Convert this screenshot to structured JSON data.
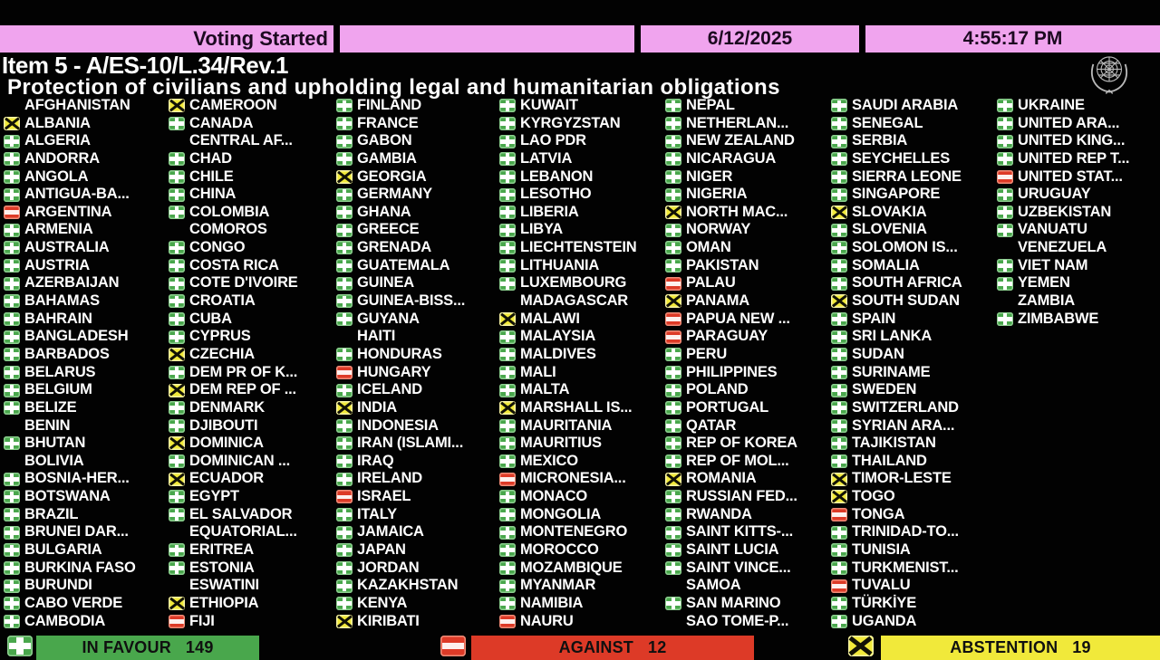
{
  "header": {
    "status_label": "Voting Started",
    "date": "6/12/2025",
    "time": "4:55:17 PM"
  },
  "title": {
    "item": "Item 5 - A/ES-10/L.34/Rev.1",
    "resolution": "Protection of civilians and upholding legal and humanitarian obligations"
  },
  "colors": {
    "topbar_pink": "#f0a4ee",
    "favour_green": "#49a74c",
    "against_red": "#dd3a27",
    "abstain_yellow": "#f1e93a",
    "text_white": "#ffffff",
    "background": "#020202"
  },
  "vote_codes": {
    "f": "in-favour",
    "n": "against",
    "a": "abstention",
    "x": "not-voting"
  },
  "columns": [
    [
      {
        "name": "AFGHANISTAN",
        "vote": "x"
      },
      {
        "name": "ALBANIA",
        "vote": "a"
      },
      {
        "name": "ALGERIA",
        "vote": "f"
      },
      {
        "name": "ANDORRA",
        "vote": "f"
      },
      {
        "name": "ANGOLA",
        "vote": "f"
      },
      {
        "name": "ANTIGUA-BA...",
        "vote": "f"
      },
      {
        "name": "ARGENTINA",
        "vote": "n"
      },
      {
        "name": "ARMENIA",
        "vote": "f"
      },
      {
        "name": "AUSTRALIA",
        "vote": "f"
      },
      {
        "name": "AUSTRIA",
        "vote": "f"
      },
      {
        "name": "AZERBAIJAN",
        "vote": "f"
      },
      {
        "name": "BAHAMAS",
        "vote": "f"
      },
      {
        "name": "BAHRAIN",
        "vote": "f"
      },
      {
        "name": "BANGLADESH",
        "vote": "f"
      },
      {
        "name": "BARBADOS",
        "vote": "f"
      },
      {
        "name": "BELARUS",
        "vote": "f"
      },
      {
        "name": "BELGIUM",
        "vote": "f"
      },
      {
        "name": "BELIZE",
        "vote": "f"
      },
      {
        "name": "BENIN",
        "vote": "x"
      },
      {
        "name": "BHUTAN",
        "vote": "f"
      },
      {
        "name": "BOLIVIA",
        "vote": "x"
      },
      {
        "name": "BOSNIA-HER...",
        "vote": "f"
      },
      {
        "name": "BOTSWANA",
        "vote": "f"
      },
      {
        "name": "BRAZIL",
        "vote": "f"
      },
      {
        "name": "BRUNEI DAR...",
        "vote": "f"
      },
      {
        "name": "BULGARIA",
        "vote": "f"
      },
      {
        "name": "BURKINA FASO",
        "vote": "f"
      },
      {
        "name": "BURUNDI",
        "vote": "f"
      },
      {
        "name": "CABO VERDE",
        "vote": "f"
      },
      {
        "name": "CAMBODIA",
        "vote": "f"
      }
    ],
    [
      {
        "name": "CAMEROON",
        "vote": "a"
      },
      {
        "name": "CANADA",
        "vote": "f"
      },
      {
        "name": "CENTRAL AF...",
        "vote": "x"
      },
      {
        "name": "CHAD",
        "vote": "f"
      },
      {
        "name": "CHILE",
        "vote": "f"
      },
      {
        "name": "CHINA",
        "vote": "f"
      },
      {
        "name": "COLOMBIA",
        "vote": "f"
      },
      {
        "name": "COMOROS",
        "vote": "x"
      },
      {
        "name": "CONGO",
        "vote": "f"
      },
      {
        "name": "COSTA RICA",
        "vote": "f"
      },
      {
        "name": "COTE D'IVOIRE",
        "vote": "f"
      },
      {
        "name": "CROATIA",
        "vote": "f"
      },
      {
        "name": "CUBA",
        "vote": "f"
      },
      {
        "name": "CYPRUS",
        "vote": "f"
      },
      {
        "name": "CZECHIA",
        "vote": "a"
      },
      {
        "name": "DEM PR OF K...",
        "vote": "f"
      },
      {
        "name": "DEM REP OF ...",
        "vote": "a"
      },
      {
        "name": "DENMARK",
        "vote": "f"
      },
      {
        "name": "DJIBOUTI",
        "vote": "f"
      },
      {
        "name": "DOMINICA",
        "vote": "a"
      },
      {
        "name": "DOMINICAN ...",
        "vote": "f"
      },
      {
        "name": "ECUADOR",
        "vote": "a"
      },
      {
        "name": "EGYPT",
        "vote": "f"
      },
      {
        "name": "EL SALVADOR",
        "vote": "f"
      },
      {
        "name": "EQUATORIAL...",
        "vote": "x"
      },
      {
        "name": "ERITREA",
        "vote": "f"
      },
      {
        "name": "ESTONIA",
        "vote": "f"
      },
      {
        "name": "ESWATINI",
        "vote": "x"
      },
      {
        "name": "ETHIOPIA",
        "vote": "a"
      },
      {
        "name": "FIJI",
        "vote": "n"
      }
    ],
    [
      {
        "name": "FINLAND",
        "vote": "f"
      },
      {
        "name": "FRANCE",
        "vote": "f"
      },
      {
        "name": "GABON",
        "vote": "f"
      },
      {
        "name": "GAMBIA",
        "vote": "f"
      },
      {
        "name": "GEORGIA",
        "vote": "a"
      },
      {
        "name": "GERMANY",
        "vote": "f"
      },
      {
        "name": "GHANA",
        "vote": "f"
      },
      {
        "name": "GREECE",
        "vote": "f"
      },
      {
        "name": "GRENADA",
        "vote": "f"
      },
      {
        "name": "GUATEMALA",
        "vote": "f"
      },
      {
        "name": "GUINEA",
        "vote": "f"
      },
      {
        "name": "GUINEA-BISS...",
        "vote": "f"
      },
      {
        "name": "GUYANA",
        "vote": "f"
      },
      {
        "name": "HAITI",
        "vote": "x"
      },
      {
        "name": "HONDURAS",
        "vote": "f"
      },
      {
        "name": "HUNGARY",
        "vote": "n"
      },
      {
        "name": "ICELAND",
        "vote": "f"
      },
      {
        "name": "INDIA",
        "vote": "a"
      },
      {
        "name": "INDONESIA",
        "vote": "f"
      },
      {
        "name": "IRAN (ISLAMI...",
        "vote": "f"
      },
      {
        "name": "IRAQ",
        "vote": "f"
      },
      {
        "name": "IRELAND",
        "vote": "f"
      },
      {
        "name": "ISRAEL",
        "vote": "n"
      },
      {
        "name": "ITALY",
        "vote": "f"
      },
      {
        "name": "JAMAICA",
        "vote": "f"
      },
      {
        "name": "JAPAN",
        "vote": "f"
      },
      {
        "name": "JORDAN",
        "vote": "f"
      },
      {
        "name": "KAZAKHSTAN",
        "vote": "f"
      },
      {
        "name": "KENYA",
        "vote": "f"
      },
      {
        "name": "KIRIBATI",
        "vote": "a"
      }
    ],
    [
      {
        "name": "KUWAIT",
        "vote": "f"
      },
      {
        "name": "KYRGYZSTAN",
        "vote": "f"
      },
      {
        "name": "LAO PDR",
        "vote": "f"
      },
      {
        "name": "LATVIA",
        "vote": "f"
      },
      {
        "name": "LEBANON",
        "vote": "f"
      },
      {
        "name": "LESOTHO",
        "vote": "f"
      },
      {
        "name": "LIBERIA",
        "vote": "f"
      },
      {
        "name": "LIBYA",
        "vote": "f"
      },
      {
        "name": "LIECHTENSTEIN",
        "vote": "f"
      },
      {
        "name": "LITHUANIA",
        "vote": "f"
      },
      {
        "name": "LUXEMBOURG",
        "vote": "f"
      },
      {
        "name": "MADAGASCAR",
        "vote": "x"
      },
      {
        "name": "MALAWI",
        "vote": "a"
      },
      {
        "name": "MALAYSIA",
        "vote": "f"
      },
      {
        "name": "MALDIVES",
        "vote": "f"
      },
      {
        "name": "MALI",
        "vote": "f"
      },
      {
        "name": "MALTA",
        "vote": "f"
      },
      {
        "name": "MARSHALL IS...",
        "vote": "a"
      },
      {
        "name": "MAURITANIA",
        "vote": "f"
      },
      {
        "name": "MAURITIUS",
        "vote": "f"
      },
      {
        "name": "MEXICO",
        "vote": "f"
      },
      {
        "name": "MICRONESIA...",
        "vote": "n"
      },
      {
        "name": "MONACO",
        "vote": "f"
      },
      {
        "name": "MONGOLIA",
        "vote": "f"
      },
      {
        "name": "MONTENEGRO",
        "vote": "f"
      },
      {
        "name": "MOROCCO",
        "vote": "f"
      },
      {
        "name": "MOZAMBIQUE",
        "vote": "f"
      },
      {
        "name": "MYANMAR",
        "vote": "f"
      },
      {
        "name": "NAMIBIA",
        "vote": "f"
      },
      {
        "name": "NAURU",
        "vote": "n"
      }
    ],
    [
      {
        "name": "NEPAL",
        "vote": "f"
      },
      {
        "name": "NETHERLAN...",
        "vote": "f"
      },
      {
        "name": "NEW ZEALAND",
        "vote": "f"
      },
      {
        "name": "NICARAGUA",
        "vote": "f"
      },
      {
        "name": "NIGER",
        "vote": "f"
      },
      {
        "name": "NIGERIA",
        "vote": "f"
      },
      {
        "name": "NORTH MAC...",
        "vote": "a"
      },
      {
        "name": "NORWAY",
        "vote": "f"
      },
      {
        "name": "OMAN",
        "vote": "f"
      },
      {
        "name": "PAKISTAN",
        "vote": "f"
      },
      {
        "name": "PALAU",
        "vote": "n"
      },
      {
        "name": "PANAMA",
        "vote": "a"
      },
      {
        "name": "PAPUA NEW ...",
        "vote": "n"
      },
      {
        "name": "PARAGUAY",
        "vote": "n"
      },
      {
        "name": "PERU",
        "vote": "f"
      },
      {
        "name": "PHILIPPINES",
        "vote": "f"
      },
      {
        "name": "POLAND",
        "vote": "f"
      },
      {
        "name": "PORTUGAL",
        "vote": "f"
      },
      {
        "name": "QATAR",
        "vote": "f"
      },
      {
        "name": "REP OF KOREA",
        "vote": "f"
      },
      {
        "name": "REP OF MOL...",
        "vote": "f"
      },
      {
        "name": "ROMANIA",
        "vote": "a"
      },
      {
        "name": "RUSSIAN FED...",
        "vote": "f"
      },
      {
        "name": "RWANDA",
        "vote": "f"
      },
      {
        "name": "SAINT KITTS-...",
        "vote": "f"
      },
      {
        "name": "SAINT LUCIA",
        "vote": "f"
      },
      {
        "name": "SAINT VINCE...",
        "vote": "f"
      },
      {
        "name": "SAMOA",
        "vote": "x"
      },
      {
        "name": "SAN MARINO",
        "vote": "f"
      },
      {
        "name": "SAO TOME-P...",
        "vote": "x"
      }
    ],
    [
      {
        "name": "SAUDI ARABIA",
        "vote": "f"
      },
      {
        "name": "SENEGAL",
        "vote": "f"
      },
      {
        "name": "SERBIA",
        "vote": "f"
      },
      {
        "name": "SEYCHELLES",
        "vote": "f"
      },
      {
        "name": "SIERRA LEONE",
        "vote": "f"
      },
      {
        "name": "SINGAPORE",
        "vote": "f"
      },
      {
        "name": "SLOVAKIA",
        "vote": "a"
      },
      {
        "name": "SLOVENIA",
        "vote": "f"
      },
      {
        "name": "SOLOMON IS...",
        "vote": "f"
      },
      {
        "name": "SOMALIA",
        "vote": "f"
      },
      {
        "name": "SOUTH AFRICA",
        "vote": "f"
      },
      {
        "name": "SOUTH SUDAN",
        "vote": "a"
      },
      {
        "name": "SPAIN",
        "vote": "f"
      },
      {
        "name": "SRI LANKA",
        "vote": "f"
      },
      {
        "name": "SUDAN",
        "vote": "f"
      },
      {
        "name": "SURINAME",
        "vote": "f"
      },
      {
        "name": "SWEDEN",
        "vote": "f"
      },
      {
        "name": "SWITZERLAND",
        "vote": "f"
      },
      {
        "name": "SYRIAN ARA...",
        "vote": "f"
      },
      {
        "name": "TAJIKISTAN",
        "vote": "f"
      },
      {
        "name": "THAILAND",
        "vote": "f"
      },
      {
        "name": "TIMOR-LESTE",
        "vote": "a"
      },
      {
        "name": "TOGO",
        "vote": "a"
      },
      {
        "name": "TONGA",
        "vote": "n"
      },
      {
        "name": "TRINIDAD-TO...",
        "vote": "f"
      },
      {
        "name": "TUNISIA",
        "vote": "f"
      },
      {
        "name": "TURKMENIST...",
        "vote": "f"
      },
      {
        "name": "TUVALU",
        "vote": "n"
      },
      {
        "name": "TÜRKİYE",
        "vote": "f"
      },
      {
        "name": "UGANDA",
        "vote": "f"
      }
    ],
    [
      {
        "name": "UKRAINE",
        "vote": "f"
      },
      {
        "name": "UNITED ARA...",
        "vote": "f"
      },
      {
        "name": "UNITED KING...",
        "vote": "f"
      },
      {
        "name": "UNITED REP T...",
        "vote": "f"
      },
      {
        "name": "UNITED STAT...",
        "vote": "n"
      },
      {
        "name": "URUGUAY",
        "vote": "f"
      },
      {
        "name": "UZBEKISTAN",
        "vote": "f"
      },
      {
        "name": "VANUATU",
        "vote": "f"
      },
      {
        "name": "VENEZUELA",
        "vote": "x"
      },
      {
        "name": "VIET NAM",
        "vote": "f"
      },
      {
        "name": "YEMEN",
        "vote": "f"
      },
      {
        "name": "ZAMBIA",
        "vote": "x"
      },
      {
        "name": "ZIMBABWE",
        "vote": "f"
      }
    ]
  ],
  "summary": {
    "favour": {
      "label": "IN FAVOUR",
      "count": "149"
    },
    "against": {
      "label": "AGAINST",
      "count": "12"
    },
    "abstain": {
      "label": "ABSTENTION",
      "count": "19"
    }
  }
}
